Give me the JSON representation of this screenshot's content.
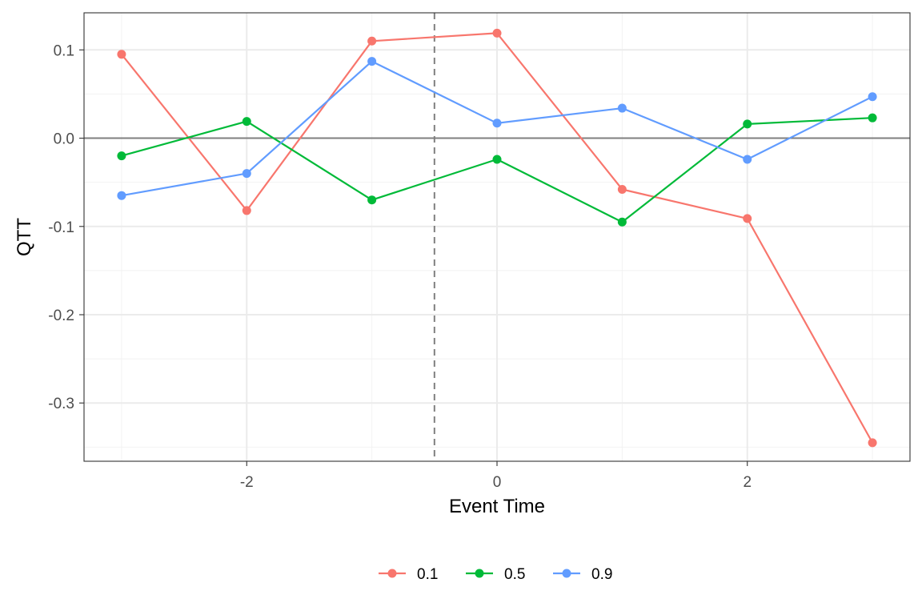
{
  "chart_data": {
    "type": "line",
    "xlabel": "Event Time",
    "ylabel": "QTT",
    "xlim": [
      -3.3,
      3.3
    ],
    "ylim": [
      -0.366,
      0.142
    ],
    "x_ticks": [
      -2,
      0,
      2
    ],
    "x_tick_labels": [
      "-2",
      "0",
      "2"
    ],
    "x_minor_ticks": [
      -3,
      -1,
      1,
      3
    ],
    "y_ticks": [
      0.1,
      0.0,
      -0.1,
      -0.2,
      -0.3
    ],
    "y_tick_labels": [
      "0.1",
      "0.0",
      "-0.1",
      "-0.2",
      "-0.3"
    ],
    "y_minor_ticks": [
      0.05,
      -0.05,
      -0.15,
      -0.25,
      -0.35
    ],
    "hline": 0,
    "vline_dashed": -0.5,
    "grid": true,
    "legend_position": "bottom",
    "x": [
      -3,
      -2,
      -1,
      0,
      1,
      2,
      3
    ],
    "series": [
      {
        "name": "0.1",
        "color": "#F8766D",
        "values": [
          0.095,
          -0.082,
          0.11,
          0.119,
          -0.058,
          -0.091,
          -0.345
        ]
      },
      {
        "name": "0.5",
        "color": "#00BA38",
        "values": [
          -0.02,
          0.019,
          -0.07,
          -0.024,
          -0.095,
          0.016,
          0.023
        ]
      },
      {
        "name": "0.9",
        "color": "#619CFF",
        "values": [
          -0.065,
          -0.04,
          0.087,
          0.017,
          0.034,
          -0.024,
          0.047
        ]
      }
    ]
  }
}
